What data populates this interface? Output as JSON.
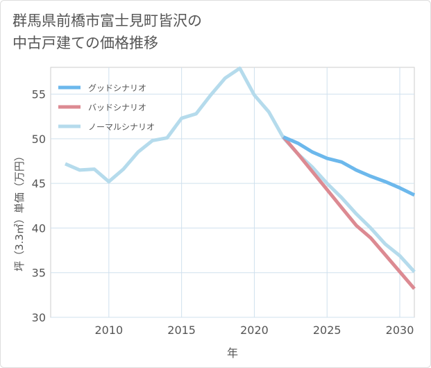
{
  "title_lines": [
    "群馬県前橋市富士見町皆沢の",
    "中古戸建ての価格推移"
  ],
  "chart_data": {
    "type": "line",
    "title": "群馬県前橋市富士見町皆沢の中古戸建ての価格推移",
    "xlabel": "年",
    "ylabel": "坪（3.3㎡）単価（万円）",
    "xlim": [
      2006,
      2031
    ],
    "ylim": [
      30,
      58
    ],
    "xticks": [
      2010,
      2015,
      2020,
      2025,
      2030
    ],
    "yticks": [
      30,
      35,
      40,
      45,
      50,
      55
    ],
    "grid": true,
    "legend_position": "top-left",
    "series": [
      {
        "name": "グッドシナリオ",
        "color": "#6cb8ec",
        "x": [
          2022,
          2023,
          2024,
          2025,
          2026,
          2027,
          2028,
          2029,
          2030,
          2031
        ],
        "y": [
          50.2,
          49.5,
          48.5,
          47.8,
          47.4,
          46.5,
          45.8,
          45.2,
          44.5,
          43.7
        ]
      },
      {
        "name": "バッドシナリオ",
        "color": "#dc8a92",
        "x": [
          2022,
          2023,
          2024,
          2025,
          2026,
          2027,
          2028,
          2029,
          2030,
          2031
        ],
        "y": [
          50.2,
          48.3,
          46.3,
          44.3,
          42.3,
          40.3,
          38.9,
          37.0,
          35.1,
          33.2
        ]
      },
      {
        "name": "ノーマルシナリオ",
        "color": "#b5dbec",
        "x": [
          2007,
          2008,
          2009,
          2010,
          2011,
          2012,
          2013,
          2014,
          2015,
          2016,
          2017,
          2018,
          2019,
          2020,
          2021,
          2022,
          2023,
          2024,
          2025,
          2026,
          2027,
          2028,
          2029,
          2030,
          2031
        ],
        "y": [
          47.2,
          46.5,
          46.6,
          45.2,
          46.6,
          48.5,
          49.8,
          50.1,
          52.3,
          52.8,
          54.9,
          56.8,
          57.9,
          54.9,
          53.0,
          50.1,
          48.3,
          46.8,
          45.0,
          43.4,
          41.6,
          40.0,
          38.2,
          36.9,
          35.1
        ]
      }
    ]
  }
}
